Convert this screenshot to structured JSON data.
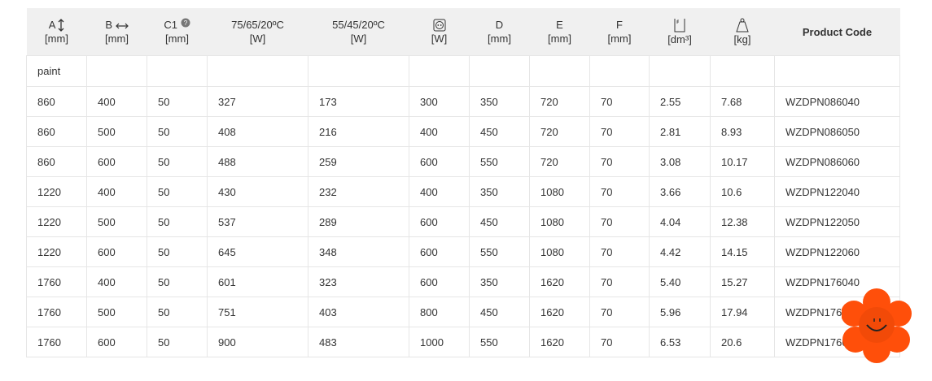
{
  "headers": [
    {
      "l1": "A",
      "l2": "[mm]",
      "icon": "vertical-arrow-icon"
    },
    {
      "l1": "B",
      "l2": "[mm]",
      "icon": "horizontal-arrow-icon"
    },
    {
      "l1": "C1",
      "l2": "[mm]",
      "icon": "help-icon"
    },
    {
      "l1": "75/65/20ºC",
      "l2": "[W]"
    },
    {
      "l1": "55/45/20ºC",
      "l2": "[W]"
    },
    {
      "l1": "",
      "l2": "[W]",
      "icon": "power-socket-icon"
    },
    {
      "l1": "D",
      "l2": "[mm]"
    },
    {
      "l1": "E",
      "l2": "[mm]"
    },
    {
      "l1": "F",
      "l2": "[mm]"
    },
    {
      "l1": "",
      "l2": "[dm³]",
      "icon": "water-volume-icon"
    },
    {
      "l1": "",
      "l2": "[kg]",
      "icon": "weight-icon"
    },
    {
      "l1": "Product Code",
      "l2": ""
    }
  ],
  "group_label": "paint",
  "rows": [
    [
      "860",
      "400",
      "50",
      "327",
      "173",
      "300",
      "350",
      "720",
      "70",
      "2.55",
      "7.68",
      "WZDPN086040"
    ],
    [
      "860",
      "500",
      "50",
      "408",
      "216",
      "400",
      "450",
      "720",
      "70",
      "2.81",
      "8.93",
      "WZDPN086050"
    ],
    [
      "860",
      "600",
      "50",
      "488",
      "259",
      "600",
      "550",
      "720",
      "70",
      "3.08",
      "10.17",
      "WZDPN086060"
    ],
    [
      "1220",
      "400",
      "50",
      "430",
      "232",
      "400",
      "350",
      "1080",
      "70",
      "3.66",
      "10.6",
      "WZDPN122040"
    ],
    [
      "1220",
      "500",
      "50",
      "537",
      "289",
      "600",
      "450",
      "1080",
      "70",
      "4.04",
      "12.38",
      "WZDPN122050"
    ],
    [
      "1220",
      "600",
      "50",
      "645",
      "348",
      "600",
      "550",
      "1080",
      "70",
      "4.42",
      "14.15",
      "WZDPN122060"
    ],
    [
      "1760",
      "400",
      "50",
      "601",
      "323",
      "600",
      "350",
      "1620",
      "70",
      "5.40",
      "15.27",
      "WZDPN176040"
    ],
    [
      "1760",
      "500",
      "50",
      "751",
      "403",
      "800",
      "450",
      "1620",
      "70",
      "5.96",
      "17.94",
      "WZDPN176050"
    ],
    [
      "1760",
      "600",
      "50",
      "900",
      "483",
      "1000",
      "550",
      "1620",
      "70",
      "6.53",
      "20.6",
      "WZDPN176060"
    ]
  ],
  "colors": {
    "header_bg": "#f0f0f0",
    "chat_widget": "#ff4f0a"
  }
}
